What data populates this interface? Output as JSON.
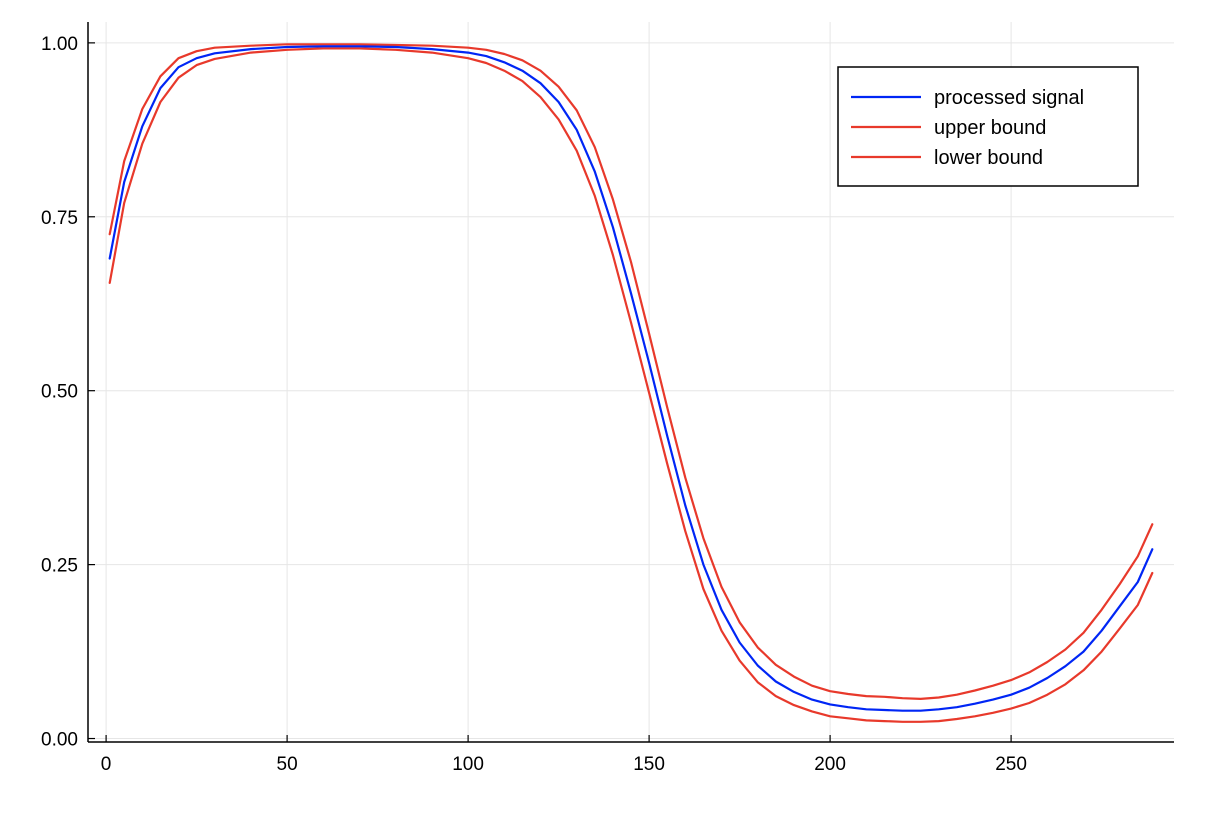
{
  "chart_data": {
    "type": "line",
    "xlim": [
      -5,
      295
    ],
    "ylim": [
      -0.005,
      1.03
    ],
    "grid": true,
    "legend_position": "top-right",
    "x_ticks": [
      {
        "value": 0,
        "label": "0"
      },
      {
        "value": 50,
        "label": "50"
      },
      {
        "value": 100,
        "label": "100"
      },
      {
        "value": 150,
        "label": "150"
      },
      {
        "value": 200,
        "label": "200"
      },
      {
        "value": 250,
        "label": "250"
      }
    ],
    "y_ticks": [
      {
        "value": 0.0,
        "label": "0.00"
      },
      {
        "value": 0.25,
        "label": "0.25"
      },
      {
        "value": 0.5,
        "label": "0.50"
      },
      {
        "value": 0.75,
        "label": "0.75"
      },
      {
        "value": 1.0,
        "label": "1.00"
      }
    ],
    "x": [
      1,
      5,
      10,
      15,
      20,
      25,
      30,
      40,
      50,
      60,
      70,
      80,
      90,
      100,
      105,
      110,
      115,
      120,
      125,
      130,
      135,
      140,
      145,
      150,
      155,
      160,
      165,
      170,
      175,
      180,
      185,
      190,
      195,
      200,
      205,
      210,
      215,
      220,
      225,
      230,
      235,
      240,
      245,
      250,
      255,
      260,
      265,
      270,
      275,
      280,
      285,
      289
    ],
    "series": [
      {
        "name": "processed signal",
        "color": "#0026f5",
        "values": [
          0.69,
          0.8,
          0.88,
          0.935,
          0.965,
          0.978,
          0.985,
          0.991,
          0.994,
          0.995,
          0.995,
          0.994,
          0.991,
          0.986,
          0.981,
          0.972,
          0.96,
          0.942,
          0.915,
          0.875,
          0.815,
          0.735,
          0.64,
          0.54,
          0.435,
          0.335,
          0.25,
          0.185,
          0.138,
          0.105,
          0.082,
          0.067,
          0.056,
          0.049,
          0.045,
          0.042,
          0.041,
          0.04,
          0.04,
          0.042,
          0.045,
          0.05,
          0.056,
          0.063,
          0.073,
          0.087,
          0.104,
          0.125,
          0.155,
          0.19,
          0.225,
          0.272
        ]
      },
      {
        "name": "upper bound",
        "color": "#e8392b",
        "values": [
          0.725,
          0.83,
          0.905,
          0.952,
          0.978,
          0.988,
          0.993,
          0.996,
          0.998,
          0.998,
          0.998,
          0.997,
          0.996,
          0.993,
          0.99,
          0.984,
          0.975,
          0.96,
          0.937,
          0.903,
          0.85,
          0.775,
          0.685,
          0.582,
          0.476,
          0.375,
          0.288,
          0.218,
          0.167,
          0.131,
          0.106,
          0.089,
          0.076,
          0.068,
          0.064,
          0.061,
          0.06,
          0.058,
          0.057,
          0.059,
          0.063,
          0.069,
          0.076,
          0.084,
          0.095,
          0.11,
          0.128,
          0.152,
          0.185,
          0.222,
          0.262,
          0.308
        ]
      },
      {
        "name": "lower bound",
        "color": "#e8392b",
        "values": [
          0.655,
          0.77,
          0.855,
          0.915,
          0.95,
          0.968,
          0.977,
          0.986,
          0.99,
          0.992,
          0.992,
          0.99,
          0.986,
          0.978,
          0.971,
          0.96,
          0.945,
          0.922,
          0.89,
          0.845,
          0.78,
          0.695,
          0.598,
          0.497,
          0.395,
          0.298,
          0.215,
          0.155,
          0.112,
          0.081,
          0.061,
          0.048,
          0.039,
          0.032,
          0.029,
          0.026,
          0.025,
          0.024,
          0.024,
          0.025,
          0.028,
          0.032,
          0.037,
          0.043,
          0.051,
          0.063,
          0.078,
          0.098,
          0.125,
          0.158,
          0.192,
          0.238
        ]
      }
    ]
  }
}
